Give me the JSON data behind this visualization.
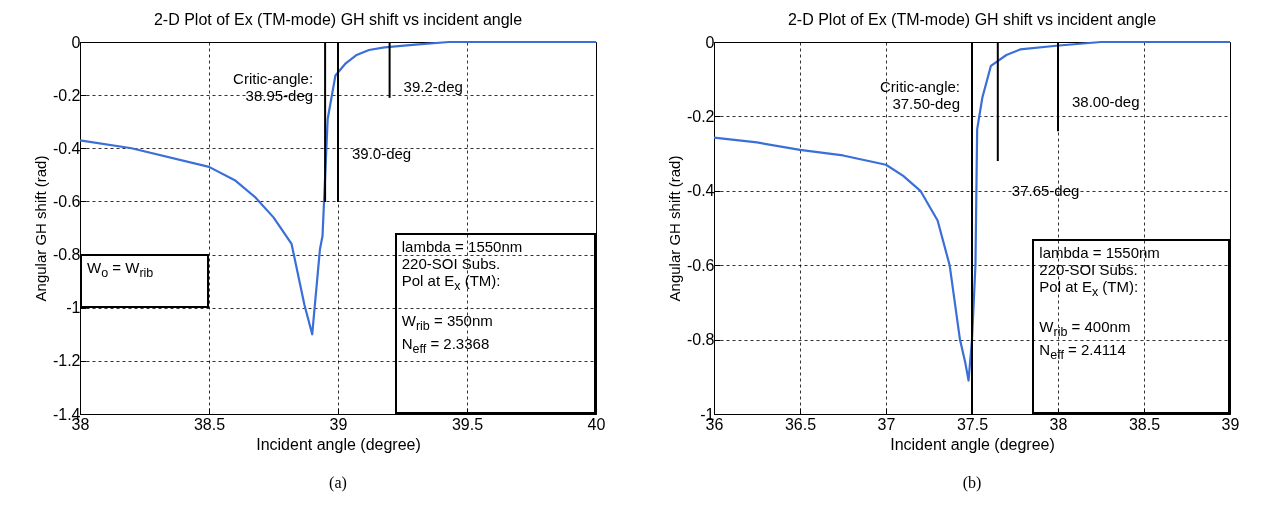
{
  "chart_data": [
    {
      "type": "line",
      "title": "2-D Plot of Ex (TM-mode) GH shift vs incident angle",
      "xlabel": "Incident angle (degree)",
      "ylabel": "Angular GH shift (rad)",
      "series": [
        {
          "color": "#3a6fd8",
          "x": [
            38,
            38.2,
            38.5,
            38.6,
            38.68,
            38.75,
            38.82,
            38.87,
            38.9,
            38.93,
            38.94,
            38.96,
            38.99,
            39.03,
            39.07,
            39.12,
            39.18,
            39.3,
            39.43,
            39.7,
            40
          ],
          "values": [
            -0.37,
            -0.4,
            -0.47,
            -0.52,
            -0.585,
            -0.66,
            -0.76,
            -0.99,
            -1.1,
            -0.78,
            -0.73,
            -0.29,
            -0.126,
            -0.08,
            -0.05,
            -0.03,
            -0.02,
            -0.01,
            0,
            0,
            0
          ]
        }
      ],
      "xlim": [
        38,
        40
      ],
      "xticks": [
        38,
        38.5,
        39,
        39.5,
        40
      ],
      "ylim": [
        -1.4,
        0
      ],
      "yticks": [
        -1.4,
        -1.2,
        -1,
        -0.8,
        -0.6,
        -0.4,
        -0.2,
        0
      ],
      "grid": true,
      "line_style": "solid",
      "ref_lines": [
        {
          "axis": "x",
          "value": 38.95,
          "label": "Critic-angle:\n38.95-deg"
        },
        {
          "axis": "x",
          "value": 39.0,
          "label": "39.0-deg"
        },
        {
          "axis": "x",
          "value": 39.2,
          "label": "39.2-deg"
        }
      ],
      "annotations": [
        "W$_{o}$ = W$_{rib}$",
        "lambda = 1550nm\n220-SOI Subs.\nPol at E$_{x}$ (TM):\n\nW$_{rib}$ = 350nm\nN$_{eff}$ = 2.3368",
        "(a)"
      ]
    },
    {
      "type": "line",
      "title": "2-D Plot of Ex (TM-mode) GH shift vs incident angle",
      "xlabel": "Incident angle (degree)",
      "ylabel": "Angular GH shift (rad)",
      "series": [
        {
          "color": "#3a6fd8",
          "x": [
            36,
            36.25,
            36.5,
            36.75,
            37,
            37.1,
            37.2,
            37.3,
            37.37,
            37.43,
            37.46,
            37.48,
            37.5,
            37.52,
            37.53,
            37.56,
            37.61,
            37.7,
            37.78,
            37.99,
            38.25,
            38.6,
            39
          ],
          "values": [
            -0.257,
            -0.27,
            -0.29,
            -0.305,
            -0.33,
            -0.36,
            -0.4,
            -0.48,
            -0.6,
            -0.8,
            -0.86,
            -0.91,
            -0.8,
            -0.6,
            -0.235,
            -0.15,
            -0.064,
            -0.035,
            -0.02,
            -0.01,
            0,
            0,
            0
          ]
        }
      ],
      "xlim": [
        36,
        39
      ],
      "xticks": [
        36,
        36.5,
        37,
        37.5,
        38,
        38.5,
        39
      ],
      "ylim": [
        -1,
        0
      ],
      "yticks": [
        -1,
        -0.8,
        -0.6,
        -0.4,
        -0.2,
        0
      ],
      "grid": true,
      "line_style": "solid",
      "ref_lines": [
        {
          "axis": "x",
          "value": 37.5,
          "label": "Critic-angle:\n37.50-deg"
        },
        {
          "axis": "x",
          "value": 37.65,
          "label": "37.65-deg"
        },
        {
          "axis": "x",
          "value": 38.0,
          "label": "38.00-deg"
        }
      ],
      "annotations": [
        "lambda = 1550nm\n220-SOI Subs.\nPol at E$_{x}$ (TM):\n\nW$_{rib}$ = 400nm\nN$_{eff}$ = 2.4114",
        "(b)"
      ]
    }
  ]
}
